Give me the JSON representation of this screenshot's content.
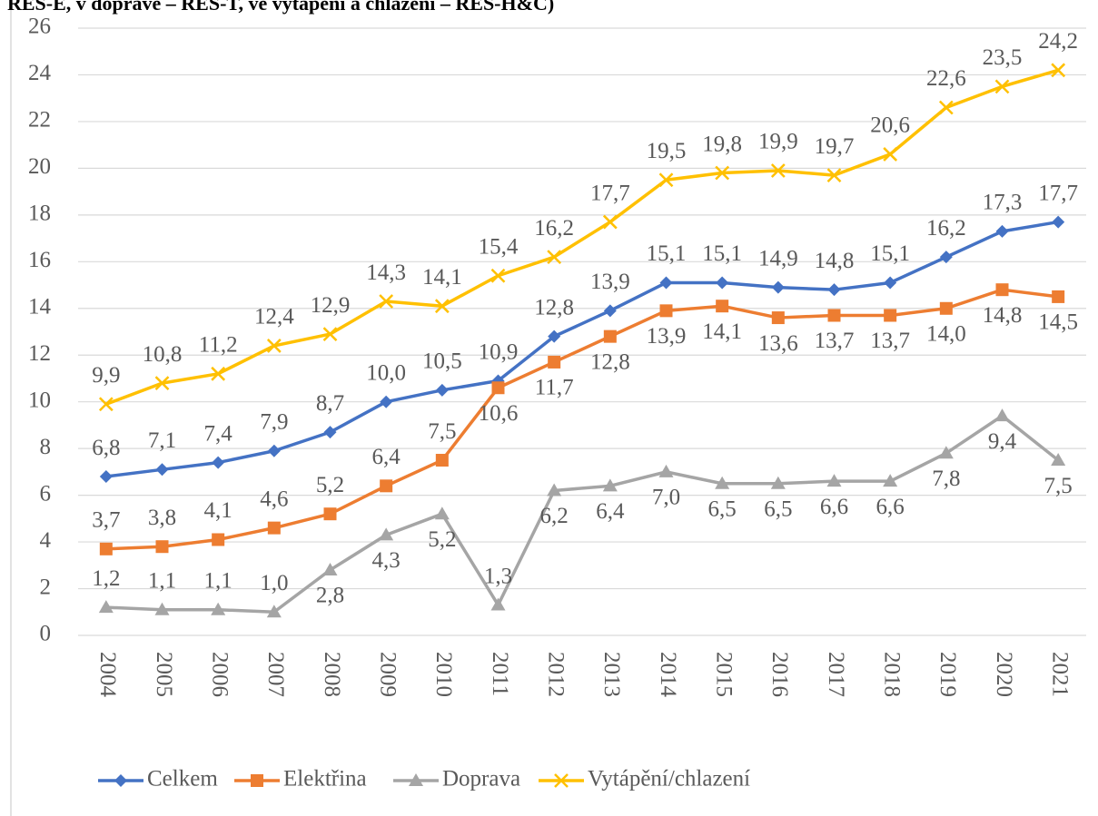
{
  "chart_data": {
    "type": "line",
    "title": "RES-E, v dopravě – RES-T, ve vytápění a chlazení – RES-H&C)",
    "categories": [
      "2004",
      "2005",
      "2006",
      "2007",
      "2008",
      "2009",
      "2010",
      "2011",
      "2012",
      "2013",
      "2014",
      "2015",
      "2016",
      "2017",
      "2018",
      "2019",
      "2020",
      "2021"
    ],
    "ylim": [
      0,
      26
    ],
    "yticks": [
      0,
      2,
      4,
      6,
      8,
      10,
      12,
      14,
      16,
      18,
      20,
      22,
      24,
      26
    ],
    "grid": true,
    "legend": "bottom",
    "series": [
      {
        "name": "Celkem",
        "color": "#4472c4",
        "marker": "diamond",
        "values": [
          6.8,
          7.1,
          7.4,
          7.9,
          8.7,
          10.0,
          10.5,
          10.9,
          12.8,
          13.9,
          15.1,
          15.1,
          14.9,
          14.8,
          15.1,
          16.2,
          17.3,
          17.7
        ],
        "value_labels": [
          "6,8",
          "7,1",
          "7,4",
          "7,9",
          "8,7",
          "10,0",
          "10,5",
          "10,9",
          "12,8",
          "13,9",
          "15,1",
          "15,1",
          "14,9",
          "14,8",
          "15,1",
          "16,2",
          "17,3",
          "17,7"
        ]
      },
      {
        "name": "Elektřina",
        "color": "#ed7d31",
        "marker": "square",
        "values": [
          3.7,
          3.8,
          4.1,
          4.6,
          5.2,
          6.4,
          7.5,
          10.6,
          11.7,
          12.8,
          13.9,
          14.1,
          13.6,
          13.7,
          13.7,
          14.0,
          14.8,
          14.5
        ],
        "value_labels": [
          "3,7",
          "3,8",
          "4,1",
          "4,6",
          "5,2",
          "6,4",
          "7,5",
          "10,6",
          "11,7",
          "12,8",
          "13,9",
          "14,1",
          "13,6",
          "13,7",
          "13,7",
          "14,0",
          "14,8",
          "14,5"
        ]
      },
      {
        "name": "Doprava",
        "color": "#a5a5a5",
        "marker": "triangle",
        "values": [
          1.2,
          1.1,
          1.1,
          1.0,
          2.8,
          4.3,
          5.2,
          1.3,
          6.2,
          6.4,
          7.0,
          6.5,
          6.5,
          6.6,
          6.6,
          7.8,
          9.4,
          7.5
        ],
        "value_labels": [
          "1,2",
          "1,1",
          "1,1",
          "1,0",
          "2,8",
          "4,3",
          "5,2",
          "1,3",
          "6,2",
          "6,4",
          "7,0",
          "6,5",
          "6,5",
          "6,6",
          "6,6",
          "7,8",
          "9,4",
          "7,5"
        ]
      },
      {
        "name": "Vytápění/chlazení",
        "color": "#ffc000",
        "marker": "x",
        "values": [
          9.9,
          10.8,
          11.2,
          12.4,
          12.9,
          14.3,
          14.1,
          15.4,
          16.2,
          17.7,
          19.5,
          19.8,
          19.9,
          19.7,
          20.6,
          22.6,
          23.5,
          24.2
        ],
        "value_labels": [
          "9,9",
          "10,8",
          "11,2",
          "12,4",
          "12,9",
          "14,3",
          "14,1",
          "15,4",
          "16,2",
          "17,7",
          "19,5",
          "19,8",
          "19,9",
          "19,7",
          "20,6",
          "22,6",
          "23,5",
          "24,2"
        ]
      }
    ]
  }
}
